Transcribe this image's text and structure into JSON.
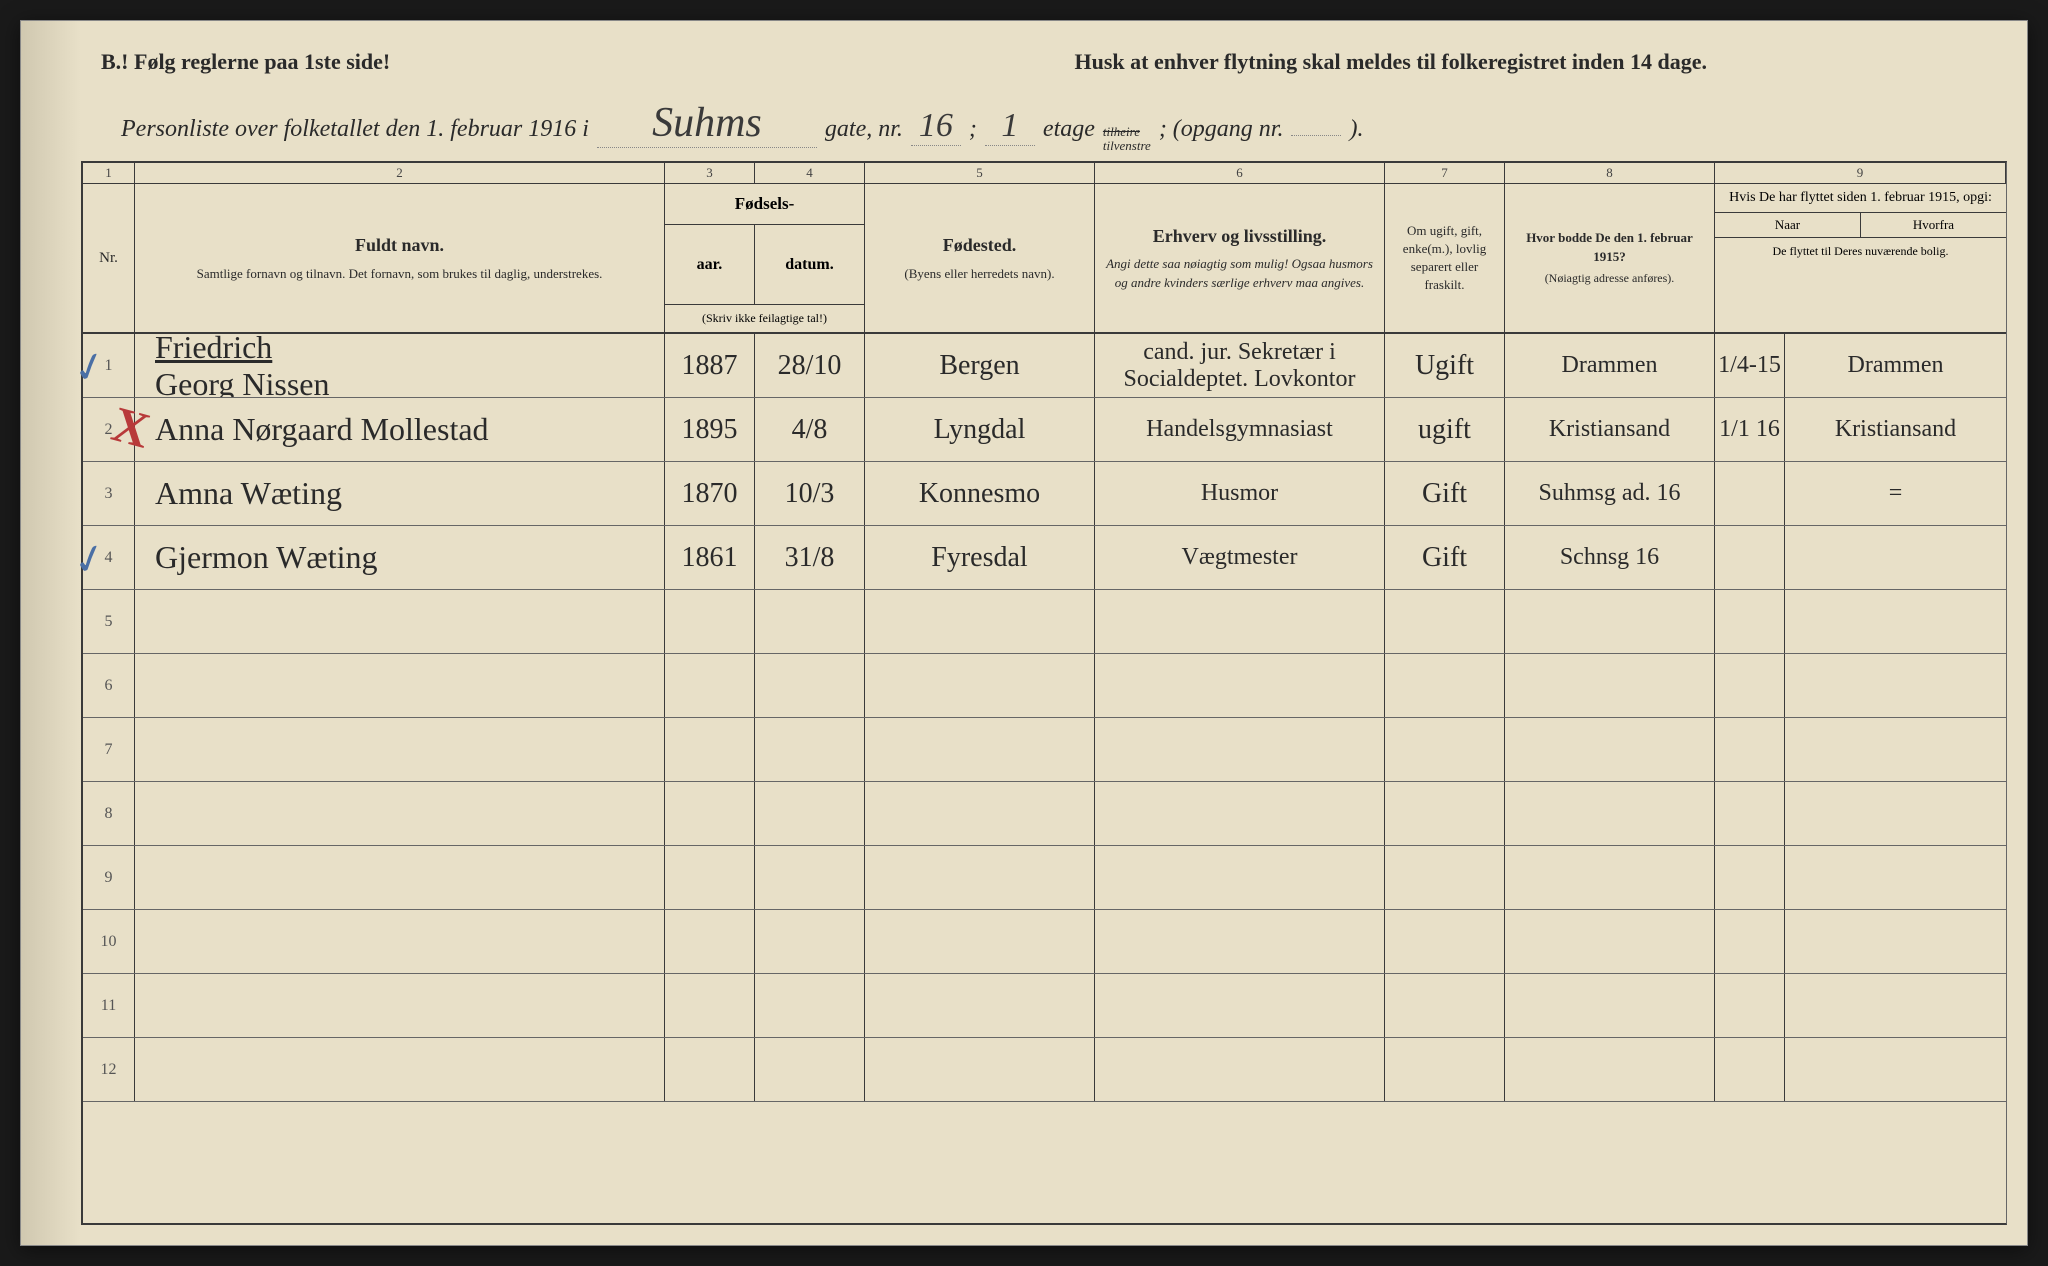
{
  "top_notice_left": "B.! Følg reglerne paa 1ste side!",
  "top_notice_right": "Husk at enhver flytning skal meldes til folkeregistret inden 14 dage.",
  "title_prefix": "Personliste over folketallet den 1. februar 1916 i",
  "street_name": "Suhms",
  "gate_label": "gate, nr.",
  "gate_nr": "16",
  "semicolon": ";",
  "etage_nr": "1",
  "etage_label": "etage",
  "tilheire": "tilheire",
  "tilvenstre": "tilvenstre",
  "opgang_label": "; (opgang nr.",
  "opgang_nr": "",
  "opgang_close": ").",
  "col_nums": [
    "1",
    "2",
    "3",
    "4",
    "5",
    "6",
    "7",
    "8",
    "9"
  ],
  "headers": {
    "nr": "Nr.",
    "name_title": "Fuldt navn.",
    "name_sub": "Samtlige fornavn og tilnavn. Det fornavn, som brukes til daglig, understrekes.",
    "birth_title": "Fødsels-",
    "birth_year": "aar.",
    "birth_date": "datum.",
    "birth_note": "(Skriv ikke feilagtige tal!)",
    "birthplace_title": "Fødested.",
    "birthplace_sub": "(Byens eller herredets navn).",
    "occ_title": "Erhverv og livsstilling.",
    "occ_sub": "Angi dette saa nøiagtig som mulig! Ogsaa husmors og andre kvinders særlige erhverv maa angives.",
    "marital_title": "Om ugift, gift, enke(m.), lovlig separert eller fraskilt.",
    "addr_title": "Hvor bodde De den 1. februar 1915?",
    "addr_sub": "(Nøiagtig adresse anføres).",
    "moved_title": "Hvis De har flyttet siden 1. februar 1915, opgi:",
    "moved_when": "Naar",
    "moved_from": "Hvorfra",
    "moved_note": "De flyttet til Deres nuværende bolig."
  },
  "rows": [
    {
      "nr": "1",
      "name": "Friedrich Georg Nissen",
      "name_underlined": "Friedrich",
      "year": "1887",
      "date": "28/10",
      "birthplace": "Bergen",
      "occupation": "cand. jur. Sekretær i Socialdeptet. Lovkontor",
      "marital": "Ugift",
      "addr1915": "Drammen",
      "moved_when": "1/4-15",
      "moved_from": "Drammen",
      "blue_mark": "✓",
      "red_mark": ""
    },
    {
      "nr": "2",
      "name": "Anna Nørgaard Mollestad",
      "name_underlined": "",
      "year": "1895",
      "date": "4/8",
      "birthplace": "Lyngdal",
      "occupation": "Handelsgymnasiast",
      "marital": "ugift",
      "addr1915": "Kristiansand",
      "moved_when": "1/1 16",
      "moved_from": "Kristiansand",
      "blue_mark": "",
      "red_mark": "X"
    },
    {
      "nr": "3",
      "name": "Amna Wæting",
      "name_underlined": "",
      "year": "1870",
      "date": "10/3",
      "birthplace": "Konnesmo",
      "occupation": "Husmor",
      "marital": "Gift",
      "addr1915": "Suhmsg ad. 16",
      "moved_when": "",
      "moved_from": "=",
      "blue_mark": "",
      "red_mark": ""
    },
    {
      "nr": "4",
      "name": "Gjermon Wæting",
      "name_underlined": "",
      "year": "1861",
      "date": "31/8",
      "birthplace": "Fyresdal",
      "occupation": "Vægtmester",
      "marital": "Gift",
      "addr1915": "Schnsg 16",
      "moved_when": "",
      "moved_from": "",
      "blue_mark": "✓",
      "red_mark": ""
    }
  ],
  "empty_rows": [
    "5",
    "6",
    "7",
    "8",
    "9",
    "10",
    "11",
    "12"
  ],
  "colors": {
    "paper": "#e8e0c8",
    "ink": "#2a2a2a",
    "border": "#3a3a3a",
    "blue_pencil": "#4a6fa5",
    "red_pencil": "#b83a3a"
  }
}
